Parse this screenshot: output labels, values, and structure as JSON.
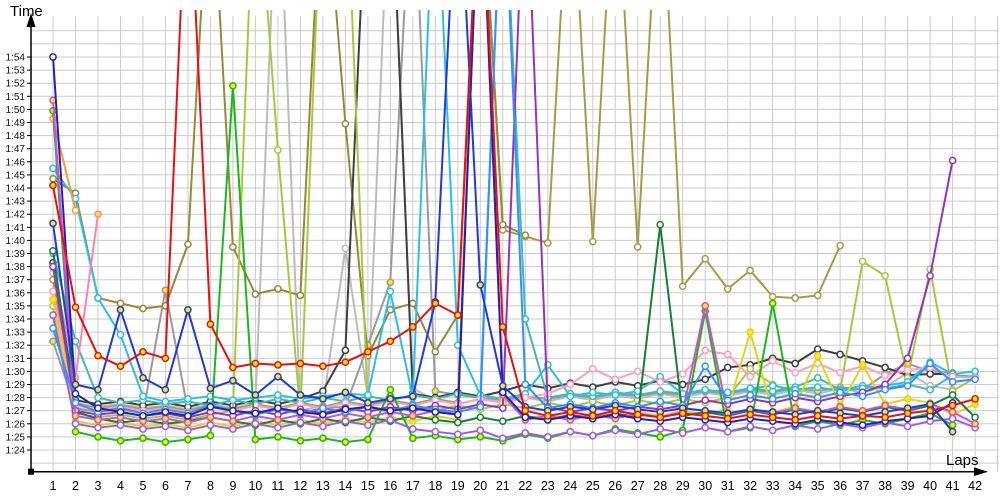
{
  "chart_data": {
    "type": "line",
    "title": "",
    "xlabel": "Laps",
    "ylabel": "Time",
    "x_ticks": [
      1,
      2,
      3,
      4,
      5,
      6,
      7,
      8,
      9,
      10,
      11,
      12,
      13,
      14,
      15,
      16,
      17,
      18,
      19,
      20,
      21,
      22,
      23,
      24,
      25,
      26,
      27,
      28,
      29,
      30,
      31,
      32,
      33,
      34,
      35,
      36,
      37,
      38,
      39,
      40,
      41,
      42
    ],
    "y_tick_labels": [
      "1:54",
      "1:53",
      "1:52",
      "1:51",
      "1:50",
      "1:49",
      "1:48",
      "1:47",
      "1:46",
      "1:45",
      "1:44",
      "1:43",
      "1:42",
      "1:41",
      "1:40",
      "1:39",
      "1:38",
      "1:37",
      "1:36",
      "1:35",
      "1:34",
      "1:33",
      "1:32",
      "1:31",
      "1:30",
      "1:29",
      "1:28",
      "1:27",
      "1:26",
      "1:25",
      "1:24"
    ],
    "ylim_seconds": [
      84,
      114
    ],
    "xlim": [
      1,
      42
    ],
    "grid": true,
    "legend": "none",
    "off_scale_value_seconds": 130,
    "grid_color": "#cbcbcb",
    "axis_color": "#000000",
    "marker_fill_yellow": "#ffe814",
    "series": [
      {
        "name": "lightgray",
        "color": "#bcbcbc",
        "marker_fill": "white",
        "lap_times_seconds": [
          97.5,
          87.6,
          87.3,
          87.5,
          87.2,
          87.4,
          87.1,
          87.5,
          87.2,
          87.6,
          130,
          87.0,
          87.4,
          99.4,
          88.0,
          130,
          88.7,
          87.8,
          87.5,
          87.9,
          87.6,
          88.0,
          87.7,
          88.1,
          87.8,
          88.2,
          87.9,
          88.3,
          88.0,
          88.4,
          88.1,
          88.5,
          88.2,
          88.6,
          88.3,
          88.7,
          88.4,
          88.8,
          89.9,
          88.9,
          88.6,
          null
        ]
      },
      {
        "name": "gray",
        "color": "#9a9a9a",
        "marker_fill": "yellow",
        "lap_times_seconds": [
          92.3,
          87.2,
          86.9,
          87.1,
          86.8,
          96.2,
          87.0,
          87.3,
          87.0,
          87.4,
          87.1,
          87.5,
          87.2,
          87.3,
          92.0,
          96.8,
          130,
          88.5,
          88.2,
          88.0,
          87.8,
          88.1,
          87.9,
          88.2,
          88.0,
          88.3,
          88.1,
          88.4,
          88.2,
          88.5,
          88.3,
          88.6,
          88.4,
          88.7,
          88.5,
          88.8,
          88.6,
          89.8,
          90.6,
          90.0,
          89.9,
          null
        ]
      },
      {
        "name": "khaki2",
        "color": "#a89a48",
        "marker_fill": "white",
        "lap_times_seconds": [
          97.0,
          87.5,
          87.2,
          87.4,
          87.1,
          87.3,
          87.0,
          87.4,
          87.1,
          87.5,
          87.2,
          87.6,
          87.3,
          87.7,
          87.4,
          87.8,
          87.5,
          87.9,
          87.6,
          130,
          100.8,
          100.3,
          99.8,
          130,
          99.9,
          130,
          99.5,
          130,
          96.5,
          98.6,
          96.3,
          97.7,
          95.7,
          95.6,
          95.8,
          99.6,
          null,
          null,
          null,
          null,
          null,
          null
        ]
      },
      {
        "name": "khaki1",
        "color": "#96893a",
        "marker_fill": "white",
        "lap_times_seconds": [
          104.7,
          103.6,
          95.6,
          95.2,
          94.8,
          95.0,
          99.7,
          130,
          99.5,
          95.9,
          96.3,
          95.8,
          130,
          108.9,
          91.2,
          94.7,
          95.2,
          91.5,
          94.3,
          130,
          101.2,
          100.4,
          null,
          null,
          null,
          null,
          null,
          null,
          null,
          null,
          null,
          null,
          null,
          null,
          null,
          null,
          null,
          null,
          null,
          null,
          null,
          null
        ]
      },
      {
        "name": "darkgray",
        "color": "#3f3f3f",
        "marker_fill": "white",
        "lap_times_seconds": [
          98.3,
          87.8,
          87.5,
          87.7,
          87.4,
          87.6,
          87.3,
          87.7,
          87.4,
          87.8,
          87.5,
          87.9,
          88.5,
          91.6,
          130,
          130,
          88.3,
          88.0,
          88.4,
          88.1,
          88.5,
          89.0,
          88.7,
          89.1,
          88.8,
          89.2,
          88.9,
          89.3,
          89.0,
          89.4,
          90.3,
          90.5,
          91.0,
          90.6,
          91.7,
          91.3,
          90.8,
          90.3,
          89.7,
          89.8,
          89.8,
          null
        ]
      },
      {
        "name": "yellowgreen",
        "color": "#a6c83e",
        "marker_fill": "white",
        "lap_times_seconds": [
          95.0,
          86.8,
          86.5,
          86.7,
          86.4,
          86.6,
          86.3,
          86.7,
          87.0,
          130,
          106.9,
          86.8,
          130,
          130,
          87.2,
          86.9,
          87.3,
          87.0,
          87.4,
          87.1,
          87.5,
          87.2,
          87.6,
          87.3,
          87.7,
          87.4,
          87.8,
          87.5,
          87.9,
          87.6,
          88.0,
          90.2,
          89.0,
          88.4,
          88.8,
          88.5,
          98.4,
          97.3,
          89.5,
          97.8,
          88.5,
          89.5
        ]
      },
      {
        "name": "turquoise",
        "color": "#3cbcb4",
        "marker_fill": "white",
        "lap_times_seconds": [
          99.0,
          92.3,
          88.0,
          87.6,
          87.8,
          87.5,
          87.7,
          87.4,
          87.8,
          87.5,
          87.9,
          87.6,
          88.0,
          87.7,
          88.1,
          87.8,
          88.2,
          87.9,
          88.3,
          88.0,
          130,
          94.0,
          88.0,
          88.3,
          88.1,
          88.4,
          88.2,
          88.5,
          88.3,
          88.6,
          88.4,
          88.7,
          88.5,
          88.8,
          89.5,
          88.6,
          88.9,
          88.7,
          89.0,
          88.6,
          89.7,
          89.6
        ]
      },
      {
        "name": "cyan",
        "color": "#29c0e8",
        "marker_fill": "white",
        "lap_times_seconds": [
          105.5,
          103.2,
          95.6,
          92.8,
          88.1,
          87.7,
          87.9,
          88.1,
          87.8,
          88.0,
          88.2,
          87.9,
          88.1,
          88.3,
          88.2,
          96.1,
          88.0,
          130,
          92.0,
          88.2,
          87.9,
          88.3,
          90.5,
          88.1,
          88.4,
          88.2,
          88.5,
          89.6,
          88.3,
          88.6,
          88.4,
          88.7,
          88.9,
          88.6,
          88.8,
          88.5,
          88.7,
          88.9,
          89.2,
          90.7,
          89.8,
          90.0
        ]
      },
      {
        "name": "orange",
        "color": "#ff9830",
        "marker_fill": "white",
        "lap_times_seconds": [
          109.3,
          102.3,
          null,
          null,
          null,
          null,
          null,
          null,
          null,
          null,
          null,
          null,
          null,
          null,
          null,
          null,
          null,
          null,
          null,
          null,
          null,
          null,
          null,
          null,
          null,
          null,
          null,
          null,
          null,
          null,
          null,
          null,
          null,
          null,
          null,
          null,
          null,
          null,
          null,
          null,
          null,
          null
        ]
      },
      {
        "name": "pink",
        "color": "#ff9cc0",
        "marker_fill": "white",
        "lap_times_seconds": [
          96.1,
          87.4,
          87.1,
          87.3,
          87.0,
          87.2,
          86.9,
          87.3,
          87.0,
          87.4,
          87.1,
          87.5,
          87.2,
          87.6,
          87.3,
          87.7,
          87.4,
          87.8,
          87.5,
          87.9,
          87.6,
          88.0,
          88.3,
          89.0,
          90.2,
          89.4,
          90.0,
          89.2,
          89.8,
          91.6,
          91.3,
          89.6,
          90.8,
          89.9,
          90.6,
          89.9,
          90.4,
          89.7,
          90.1,
          90.3,
          89.6,
          89.5
        ]
      },
      {
        "name": "pink2",
        "color": "#ff80b5",
        "marker_fill": "yellow",
        "lap_times_seconds": [
          98.0,
          89.5,
          102.0,
          null,
          null,
          null,
          null,
          null,
          null,
          null,
          null,
          null,
          null,
          null,
          null,
          null,
          null,
          null,
          null,
          null,
          null,
          null,
          null,
          null,
          null,
          null,
          null,
          null,
          null,
          null,
          null,
          null,
          null,
          null,
          null,
          null,
          null,
          null,
          null,
          null,
          null,
          null
        ]
      },
      {
        "name": "yellow",
        "color": "#e0d618",
        "marker_fill": "yellow",
        "lap_times_seconds": [
          95.5,
          86.2,
          85.9,
          86.1,
          85.8,
          86.0,
          85.7,
          86.1,
          85.8,
          86.2,
          85.9,
          86.3,
          86.0,
          86.4,
          86.1,
          86.5,
          86.2,
          86.6,
          86.3,
          130,
          88.0,
          86.4,
          86.7,
          86.4,
          86.8,
          86.5,
          86.9,
          86.6,
          87.0,
          86.7,
          87.1,
          93.0,
          86.9,
          87.3,
          91.2,
          87.4,
          90.5,
          87.5,
          87.9,
          87.6,
          86.7,
          87.5
        ]
      },
      {
        "name": "green2",
        "color": "#178033",
        "marker_fill": "white",
        "lap_times_seconds": [
          99.2,
          86.9,
          86.4,
          86.1,
          86.3,
          86.0,
          86.2,
          86.5,
          86.2,
          85.9,
          86.3,
          86.0,
          86.4,
          86.1,
          86.5,
          86.2,
          86.6,
          86.3,
          86.1,
          86.5,
          86.2,
          86.6,
          86.3,
          86.7,
          86.4,
          86.8,
          86.5,
          101.2,
          86.6,
          86.9,
          86.6,
          87.0,
          86.7,
          87.1,
          86.8,
          87.2,
          86.9,
          87.3,
          87.0,
          87.4,
          88.2,
          86.5
        ]
      },
      {
        "name": "green1",
        "color": "#1cb81c",
        "marker_fill": "yellow",
        "lap_times_seconds": [
          109.9,
          85.4,
          85.0,
          84.7,
          84.9,
          84.6,
          84.8,
          85.1,
          111.8,
          84.8,
          85.0,
          84.7,
          84.9,
          84.6,
          84.8,
          88.6,
          84.9,
          85.1,
          84.8,
          85.0,
          84.7,
          85.2,
          84.9,
          85.4,
          85.1,
          85.6,
          85.3,
          85.0,
          85.5,
          94.6,
          85.4,
          85.7,
          95.2,
          85.8,
          86.2,
          85.9,
          86.3,
          86.0,
          86.4,
          86.8,
          85.9,
          null
        ]
      },
      {
        "name": "violet",
        "color": "#a05ce8",
        "marker_fill": "white",
        "lap_times_seconds": [
          94.3,
          86.0,
          85.7,
          85.9,
          85.6,
          85.8,
          85.5,
          85.9,
          85.6,
          86.0,
          85.7,
          86.1,
          85.8,
          86.2,
          85.9,
          86.3,
          85.6,
          85.4,
          85.2,
          85.5,
          84.9,
          85.3,
          85.0,
          85.4,
          85.1,
          85.5,
          85.2,
          85.6,
          85.3,
          85.7,
          85.4,
          85.8,
          85.5,
          85.9,
          85.6,
          86.0,
          85.7,
          86.1,
          85.8,
          86.2,
          86.4,
          85.7
        ]
      },
      {
        "name": "purple",
        "color": "#9933b5",
        "marker_fill": "white",
        "lap_times_seconds": [
          98.0,
          87.0,
          86.7,
          86.9,
          86.6,
          86.8,
          86.5,
          86.9,
          86.6,
          87.0,
          86.7,
          87.1,
          86.8,
          87.2,
          86.9,
          87.3,
          87.0,
          87.4,
          87.1,
          87.5,
          87.2,
          130,
          87.3,
          86.9,
          87.2,
          87.0,
          87.3,
          87.1,
          87.4,
          87.8,
          87.5,
          87.9,
          87.6,
          88.0,
          87.7,
          88.1,
          88.4,
          89.0,
          91.0,
          97.3,
          106.1,
          null
        ]
      },
      {
        "name": "magenta",
        "color": "#d14fd1",
        "marker_fill": "yellow",
        "lap_times_seconds": [
          110.7,
          86.6,
          86.3,
          86.5,
          86.2,
          86.4,
          86.1,
          86.5,
          86.2,
          86.6,
          86.3,
          86.7,
          86.4,
          86.8,
          86.5,
          86.9,
          86.6,
          87.0,
          86.7,
          130,
          88.2,
          86.3,
          86.6,
          86.3,
          86.7,
          86.4,
          86.8,
          86.5,
          86.9,
          95.0,
          86.7,
          87.1,
          86.8,
          87.2,
          86.9,
          87.3,
          87.0,
          87.4,
          87.1,
          87.5,
          86.9,
          86.0
        ]
      },
      {
        "name": "dodgerblue",
        "color": "#3390ff",
        "marker_fill": "white",
        "lap_times_seconds": [
          93.3,
          87.6,
          86.9,
          87.2,
          86.8,
          87.1,
          86.8,
          87.4,
          87.0,
          86.7,
          87.1,
          86.8,
          87.2,
          86.9,
          87.3,
          87.0,
          87.4,
          87.1,
          86.9,
          87.3,
          130,
          89.0,
          87.2,
          87.5,
          87.2,
          87.6,
          87.3,
          87.7,
          87.4,
          90.4,
          87.8,
          88.2,
          87.9,
          88.3,
          88.0,
          88.4,
          88.1,
          88.6,
          88.9,
          90.6,
          89.2,
          89.4
        ]
      },
      {
        "name": "navy",
        "color": "#2222b2",
        "marker_fill": "white",
        "lap_times_seconds": [
          114.0,
          88.3,
          87.2,
          86.9,
          86.6,
          86.9,
          86.6,
          87.3,
          87.0,
          86.8,
          87.2,
          86.9,
          86.7,
          87.1,
          87.3,
          87.0,
          87.2,
          86.9,
          86.7,
          130,
          88.4,
          86.5,
          86.3,
          86.6,
          86.4,
          86.7,
          86.4,
          86.2,
          86.5,
          86.3,
          86.1,
          86.4,
          86.2,
          86.0,
          86.3,
          86.1,
          85.9,
          86.2,
          86.4,
          86.6,
          87.6,
          null
        ]
      },
      {
        "name": "blue",
        "color": "#2239d9",
        "marker_fill": "yellow",
        "lap_times_seconds": [
          101.3,
          89.0,
          88.6,
          94.7,
          89.5,
          88.6,
          94.7,
          88.7,
          89.3,
          88.2,
          89.6,
          88.2,
          87.9,
          88.4,
          87.6,
          87.9,
          88.1,
          95.3,
          130,
          96.6,
          88.9,
          87.3,
          87.0,
          87.3,
          87.1,
          87.4,
          87.1,
          86.9,
          87.2,
          87.0,
          86.8,
          87.1,
          86.9,
          86.7,
          87.0,
          86.8,
          86.6,
          86.9,
          87.2,
          87.5,
          85.4,
          null
        ]
      },
      {
        "name": "red",
        "color": "#e81010",
        "marker_fill": "yellow",
        "lap_times_seconds": [
          104.2,
          94.9,
          91.2,
          90.4,
          91.5,
          91.0,
          130,
          93.6,
          90.3,
          90.6,
          90.5,
          90.6,
          90.4,
          90.7,
          91.5,
          92.3,
          93.4,
          95.2,
          94.3,
          130,
          93.4,
          87.0,
          86.6,
          86.9,
          86.6,
          87.0,
          86.7,
          86.5,
          86.8,
          86.6,
          86.4,
          86.7,
          86.5,
          86.3,
          86.6,
          86.4,
          86.6,
          86.5,
          86.8,
          87.0,
          87.4,
          87.9
        ]
      }
    ]
  }
}
